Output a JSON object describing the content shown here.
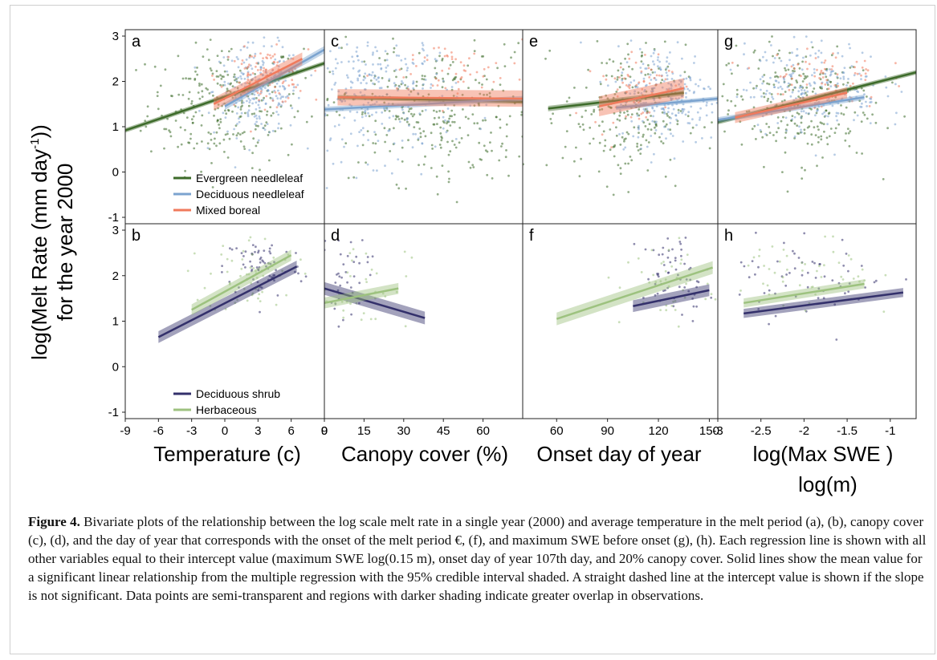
{
  "figure": {
    "ylabel_line1": "log(Melt Rate (mm day",
    "ylabel_sup": "-1",
    "ylabel_line1_end": "))",
    "ylabel_line2": "for the year 2000",
    "xlabels": [
      "Temperature (c)",
      "Canopy cover (%)",
      "Onset day of year",
      "log(Max SWE )"
    ],
    "xlabel_extra": "log(m)"
  },
  "caption": {
    "label": "Figure 4.",
    "text": " Bivariate plots of the relationship between the log scale melt rate in a single year (2000) and average temperature in the melt period (a), (b), canopy cover (c), (d), and the day of year that corresponds with the onset of the melt period €, (f), and maximum SWE before onset (g), (h). Each regression line is shown with all other variables equal to their intercept value (maximum SWE log(0.15 m), onset day of year 107th day, and 20% canopy cover. Solid lines show the mean value for a significant linear relationship from the multiple regression with the 95% credible interval shaded. A straight dashed line at the intercept value is shown if the slope is not significant. Data points are semi-transparent and regions with darker shading indicate greater overlap in observations."
  },
  "colors": {
    "evergreen": "#3d6b2a",
    "deciduous_needleleaf": "#7ba3cf",
    "mixed": "#f07a5c",
    "deciduous_shrub": "#33306b",
    "herbaceous": "#9dc27f"
  },
  "chart_data": [
    {
      "panel": "a",
      "type": "scatter",
      "xlim": [
        -9,
        9
      ],
      "ylim": [
        -1,
        3
      ],
      "xticks": [
        "-9",
        "-6",
        "-3",
        "0",
        "3",
        "6",
        "9"
      ],
      "yticks": [
        "-1",
        "0",
        "1",
        "2",
        "3"
      ],
      "series": [
        {
          "name": "Evergreen needleleaf",
          "color_key": "evergreen",
          "line": [
            [
              -9,
              0.92
            ],
            [
              9,
              2.4
            ]
          ],
          "band": 0.05,
          "points": {
            "cx": 0,
            "cy": 1.5,
            "sx": 3.5,
            "sy": 0.7,
            "n": 260
          }
        },
        {
          "name": "Deciduous needleleaf",
          "color_key": "deciduous_needleleaf",
          "line": [
            [
              0,
              1.45
            ],
            [
              9,
              2.7
            ]
          ],
          "band": 0.08,
          "points": {
            "cx": 3,
            "cy": 1.8,
            "sx": 2.0,
            "sy": 0.5,
            "n": 220
          }
        },
        {
          "name": "Mixed boreal",
          "color_key": "mixed",
          "line": [
            [
              -1,
              1.5
            ],
            [
              7,
              2.5
            ]
          ],
          "band": 0.14,
          "points": {
            "cx": 3.5,
            "cy": 2.1,
            "sx": 2.0,
            "sy": 0.3,
            "n": 110
          }
        }
      ],
      "legend": [
        "Evergreen needleleaf",
        "Deciduous needleleaf",
        "Mixed boreal"
      ]
    },
    {
      "panel": "b",
      "type": "scatter",
      "xlim": [
        -9,
        9
      ],
      "ylim": [
        -1,
        3
      ],
      "xticks": [
        "-9",
        "-6",
        "-3",
        "0",
        "3",
        "6",
        "9"
      ],
      "yticks": [
        "-1",
        "0",
        "1",
        "2",
        "3"
      ],
      "series": [
        {
          "name": "Deciduous shrub",
          "color_key": "deciduous_shrub",
          "line": [
            [
              -6,
              0.65
            ],
            [
              6.5,
              2.2
            ]
          ],
          "band": 0.13,
          "points": {
            "cx": 3.5,
            "cy": 2.2,
            "sx": 1.8,
            "sy": 0.35,
            "n": 70
          }
        },
        {
          "name": "Herbaceous",
          "color_key": "herbaceous",
          "line": [
            [
              -3,
              1.25
            ],
            [
              6,
              2.45
            ]
          ],
          "band": 0.12,
          "points": {
            "cx": 2.5,
            "cy": 2.0,
            "sx": 2.0,
            "sy": 0.45,
            "n": 60
          }
        }
      ],
      "legend": [
        "Deciduous shrub",
        "Herbaceous"
      ]
    },
    {
      "panel": "c",
      "type": "scatter",
      "xlim": [
        0,
        75
      ],
      "ylim": [
        -1,
        3
      ],
      "xticks": [
        "0",
        "15",
        "30",
        "45",
        "60"
      ],
      "yticks": [],
      "series": [
        {
          "name": "Evergreen needleleaf",
          "color_key": "evergreen",
          "line": [
            [
              5,
              1.65
            ],
            [
              75,
              1.55
            ]
          ],
          "band": 0.05,
          "points": {
            "cx": 40,
            "cy": 1.3,
            "sx": 20,
            "sy": 0.75,
            "n": 300
          }
        },
        {
          "name": "Deciduous needleleaf",
          "color_key": "deciduous_needleleaf",
          "line": [
            [
              0,
              1.38
            ],
            [
              75,
              1.62
            ]
          ],
          "band": 0.06,
          "points": {
            "cx": 20,
            "cy": 1.7,
            "sx": 15,
            "sy": 0.7,
            "n": 280
          }
        },
        {
          "name": "Mixed boreal",
          "color_key": "mixed",
          "line": [
            [
              5,
              1.65
            ],
            [
              75,
              1.62
            ]
          ],
          "band": 0.18,
          "points": {
            "cx": 50,
            "cy": 2.2,
            "sx": 15,
            "sy": 0.4,
            "n": 60
          }
        }
      ]
    },
    {
      "panel": "d",
      "type": "scatter",
      "xlim": [
        0,
        75
      ],
      "ylim": [
        -1,
        3
      ],
      "xticks": [
        "0",
        "15",
        "30",
        "45",
        "60"
      ],
      "yticks": [],
      "series": [
        {
          "name": "Deciduous shrub",
          "color_key": "deciduous_shrub",
          "line": [
            [
              0,
              1.72
            ],
            [
              38,
              1.07
            ]
          ],
          "band": 0.14,
          "points": {
            "cx": 5,
            "cy": 2.0,
            "sx": 6,
            "sy": 0.5,
            "n": 50
          }
        },
        {
          "name": "Herbaceous",
          "color_key": "herbaceous",
          "line": [
            [
              0,
              1.4
            ],
            [
              28,
              1.72
            ]
          ],
          "band": 0.12,
          "points": {
            "cx": 12,
            "cy": 1.8,
            "sx": 10,
            "sy": 0.5,
            "n": 40
          }
        }
      ]
    },
    {
      "panel": "e",
      "type": "scatter",
      "xlim": [
        40,
        155
      ],
      "ylim": [
        -1,
        3
      ],
      "xticks": [
        "60",
        "90",
        "120",
        "150"
      ],
      "yticks": [],
      "series": [
        {
          "name": "Evergreen needleleaf",
          "color_key": "evergreen",
          "line": [
            [
              55,
              1.4
            ],
            [
              135,
              1.75
            ]
          ],
          "band": 0.06,
          "points": {
            "cx": 100,
            "cy": 1.3,
            "sx": 18,
            "sy": 0.75,
            "n": 220
          }
        },
        {
          "name": "Deciduous needleleaf",
          "color_key": "deciduous_needleleaf",
          "line": [
            [
              95,
              1.42
            ],
            [
              155,
              1.62
            ]
          ],
          "band": 0.05,
          "points": {
            "cx": 125,
            "cy": 1.7,
            "sx": 15,
            "sy": 0.55,
            "n": 240
          }
        },
        {
          "name": "Mixed boreal",
          "color_key": "mixed",
          "line": [
            [
              85,
              1.45
            ],
            [
              135,
              1.85
            ]
          ],
          "band": 0.22,
          "points": {
            "cx": 105,
            "cy": 1.9,
            "sx": 12,
            "sy": 0.45,
            "n": 70
          }
        }
      ]
    },
    {
      "panel": "f",
      "type": "scatter",
      "xlim": [
        40,
        155
      ],
      "ylim": [
        -1,
        3
      ],
      "xticks": [
        "60",
        "90",
        "120",
        "150"
      ],
      "yticks": [],
      "series": [
        {
          "name": "Deciduous shrub",
          "color_key": "deciduous_shrub",
          "line": [
            [
              105,
              1.33
            ],
            [
              150,
              1.68
            ]
          ],
          "band": 0.13,
          "points": {
            "cx": 130,
            "cy": 2.0,
            "sx": 10,
            "sy": 0.45,
            "n": 60
          }
        },
        {
          "name": "Herbaceous",
          "color_key": "herbaceous",
          "line": [
            [
              60,
              1.05
            ],
            [
              152,
              2.18
            ]
          ],
          "band": 0.14,
          "points": {
            "cx": 125,
            "cy": 1.8,
            "sx": 14,
            "sy": 0.5,
            "n": 40
          }
        }
      ]
    },
    {
      "panel": "g",
      "type": "scatter",
      "xlim": [
        -3,
        -0.7
      ],
      "ylim": [
        -1,
        3
      ],
      "xticks": [
        "-3",
        "-2.5",
        "-2",
        "-1.5",
        "-1"
      ],
      "yticks": [],
      "series": [
        {
          "name": "Evergreen needleleaf",
          "color_key": "evergreen",
          "line": [
            [
              -3,
              1.1
            ],
            [
              -0.7,
              2.2
            ]
          ],
          "band": 0.05,
          "points": {
            "cx": -2.1,
            "cy": 1.5,
            "sx": 0.45,
            "sy": 0.65,
            "n": 260
          }
        },
        {
          "name": "Deciduous needleleaf",
          "color_key": "deciduous_needleleaf",
          "line": [
            [
              -3,
              1.15
            ],
            [
              -1.3,
              1.65
            ]
          ],
          "band": 0.06,
          "points": {
            "cx": -1.9,
            "cy": 1.9,
            "sx": 0.4,
            "sy": 0.5,
            "n": 230
          }
        },
        {
          "name": "Mixed boreal",
          "color_key": "mixed",
          "line": [
            [
              -2.8,
              1.2
            ],
            [
              -1.5,
              1.75
            ]
          ],
          "band": 0.12,
          "points": {
            "cx": -1.8,
            "cy": 2.1,
            "sx": 0.35,
            "sy": 0.35,
            "n": 70
          }
        }
      ]
    },
    {
      "panel": "h",
      "type": "scatter",
      "xlim": [
        -3,
        -0.7
      ],
      "ylim": [
        -1,
        3
      ],
      "xticks": [
        "-3",
        "-2.5",
        "-2",
        "-1.5",
        "-1"
      ],
      "yticks": [],
      "series": [
        {
          "name": "Deciduous shrub",
          "color_key": "deciduous_shrub",
          "line": [
            [
              -2.7,
              1.17
            ],
            [
              -0.85,
              1.63
            ]
          ],
          "band": 0.1,
          "points": {
            "cx": -1.9,
            "cy": 2.0,
            "sx": 0.45,
            "sy": 0.45,
            "n": 60
          }
        },
        {
          "name": "Herbaceous",
          "color_key": "herbaceous",
          "line": [
            [
              -2.7,
              1.4
            ],
            [
              -1.3,
              1.82
            ]
          ],
          "band": 0.1,
          "points": {
            "cx": -2.0,
            "cy": 1.9,
            "sx": 0.4,
            "sy": 0.5,
            "n": 50
          }
        }
      ]
    }
  ]
}
